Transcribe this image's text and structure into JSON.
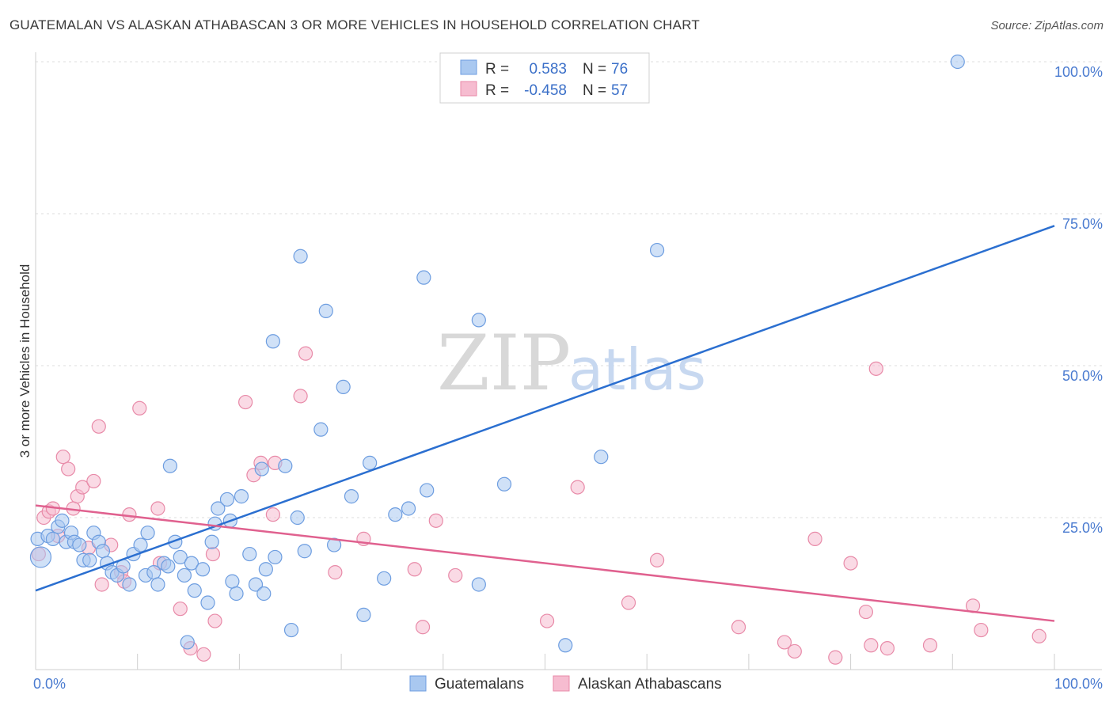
{
  "title": "GUATEMALAN VS ALASKAN ATHABASCAN 3 OR MORE VEHICLES IN HOUSEHOLD CORRELATION CHART",
  "source": "Source: ZipAtlas.com",
  "watermark": {
    "zip": "ZIP",
    "atlas": "atlas"
  },
  "colors": {
    "blue_fill": "#a9c8f0",
    "blue_stroke": "#6d9de0",
    "blue_line": "#2b6fd0",
    "pink_fill": "#f6bcd0",
    "pink_stroke": "#e88aa8",
    "pink_line": "#e0618f",
    "grid": "#dddddd",
    "tick_text": "#4a7bd0"
  },
  "legend": {
    "rows": [
      {
        "r_label": "R =",
        "r_value": "0.583",
        "n_label": "N =",
        "n_value": "76",
        "series": "Guatemalans"
      },
      {
        "r_label": "R =",
        "r_value": "-0.458",
        "n_label": "N =",
        "n_value": "57",
        "series": "Alaskan Athabascans"
      }
    ]
  },
  "chart_data": {
    "type": "scatter",
    "xlabel": "",
    "ylabel": "3 or more Vehicles in Household",
    "xlim": [
      0,
      100
    ],
    "ylim": [
      0,
      100
    ],
    "x_tick_labels": [
      "0.0%",
      "100.0%"
    ],
    "y_tick_labels": [
      {
        "value": 25,
        "label": "25.0%"
      },
      {
        "value": 50,
        "label": "50.0%"
      },
      {
        "value": 75,
        "label": "75.0%"
      },
      {
        "value": 100,
        "label": "100.0%"
      }
    ],
    "series": [
      {
        "name": "Guatemalans",
        "r": 0.583,
        "n": 76,
        "trend": {
          "x": [
            0,
            100
          ],
          "y": [
            13.0,
            73.0
          ]
        },
        "points": [
          [
            0.2,
            21.5
          ],
          [
            0.5,
            18.5
          ],
          [
            1.2,
            22
          ],
          [
            1.7,
            21.5
          ],
          [
            2.2,
            23.5
          ],
          [
            2.6,
            24.5
          ],
          [
            3.0,
            21
          ],
          [
            3.5,
            22.5
          ],
          [
            3.8,
            21
          ],
          [
            4.3,
            20.5
          ],
          [
            4.7,
            18
          ],
          [
            5.3,
            18
          ],
          [
            5.7,
            22.5
          ],
          [
            6.2,
            21
          ],
          [
            6.6,
            19.5
          ],
          [
            7.0,
            17.5
          ],
          [
            7.5,
            16
          ],
          [
            8.0,
            15.5
          ],
          [
            8.6,
            17
          ],
          [
            9.2,
            14
          ],
          [
            9.6,
            19
          ],
          [
            10.3,
            20.5
          ],
          [
            10.8,
            15.5
          ],
          [
            11.0,
            22.5
          ],
          [
            11.6,
            16
          ],
          [
            12.0,
            14
          ],
          [
            12.6,
            17.5
          ],
          [
            13.0,
            17
          ],
          [
            13.2,
            33.5
          ],
          [
            13.7,
            21
          ],
          [
            14.2,
            18.5
          ],
          [
            14.6,
            15.5
          ],
          [
            14.9,
            4.5
          ],
          [
            15.3,
            17.5
          ],
          [
            15.6,
            13
          ],
          [
            16.4,
            16.5
          ],
          [
            16.9,
            11
          ],
          [
            17.3,
            21
          ],
          [
            17.6,
            24
          ],
          [
            17.9,
            26.5
          ],
          [
            18.8,
            28
          ],
          [
            19.1,
            24.5
          ],
          [
            19.3,
            14.5
          ],
          [
            19.7,
            12.5
          ],
          [
            20.2,
            28.5
          ],
          [
            21.0,
            19
          ],
          [
            21.6,
            14
          ],
          [
            22.2,
            33
          ],
          [
            22.4,
            12.5
          ],
          [
            22.6,
            16.5
          ],
          [
            23.3,
            54
          ],
          [
            23.5,
            18.5
          ],
          [
            24.5,
            33.5
          ],
          [
            25.1,
            6.5
          ],
          [
            25.7,
            25
          ],
          [
            26.0,
            68
          ],
          [
            26.4,
            19.5
          ],
          [
            28.0,
            39.5
          ],
          [
            28.5,
            59
          ],
          [
            29.3,
            20.5
          ],
          [
            30.2,
            46.5
          ],
          [
            31.0,
            28.5
          ],
          [
            32.2,
            9
          ],
          [
            32.8,
            34
          ],
          [
            34.2,
            15
          ],
          [
            35.3,
            25.5
          ],
          [
            36.6,
            26.5
          ],
          [
            38.4,
            29.5
          ],
          [
            38.1,
            64.5
          ],
          [
            43.5,
            57.5
          ],
          [
            43.5,
            14
          ],
          [
            46.0,
            30.5
          ],
          [
            52.0,
            4
          ],
          [
            55.5,
            35
          ],
          [
            61.0,
            69
          ],
          [
            90.5,
            100
          ]
        ]
      },
      {
        "name": "Alaskan Athabascans",
        "r": -0.458,
        "n": 57,
        "trend": {
          "x": [
            0,
            100
          ],
          "y": [
            27.0,
            8.0
          ]
        },
        "points": [
          [
            0.3,
            19
          ],
          [
            0.8,
            25
          ],
          [
            1.3,
            26
          ],
          [
            1.7,
            26.5
          ],
          [
            2.2,
            22
          ],
          [
            2.7,
            35
          ],
          [
            3.2,
            33
          ],
          [
            3.7,
            26.5
          ],
          [
            4.1,
            28.5
          ],
          [
            4.6,
            30
          ],
          [
            5.2,
            20
          ],
          [
            5.7,
            31
          ],
          [
            6.2,
            40
          ],
          [
            6.5,
            14
          ],
          [
            7.4,
            20.5
          ],
          [
            8.4,
            16
          ],
          [
            8.7,
            14.5
          ],
          [
            9.2,
            25.5
          ],
          [
            10.2,
            43
          ],
          [
            12.0,
            26.5
          ],
          [
            12.2,
            17.5
          ],
          [
            14.2,
            10
          ],
          [
            15.2,
            3.5
          ],
          [
            16.5,
            2.5
          ],
          [
            17.4,
            19
          ],
          [
            17.6,
            8
          ],
          [
            20.6,
            44
          ],
          [
            21.4,
            32
          ],
          [
            22.1,
            34
          ],
          [
            23.5,
            34
          ],
          [
            23.3,
            25.5
          ],
          [
            26.0,
            45
          ],
          [
            26.5,
            52
          ],
          [
            29.4,
            16
          ],
          [
            32.2,
            21.5
          ],
          [
            37.2,
            16.5
          ],
          [
            38.0,
            7
          ],
          [
            39.3,
            24.5
          ],
          [
            41.2,
            15.5
          ],
          [
            50.2,
            8
          ],
          [
            53.2,
            30
          ],
          [
            58.2,
            11
          ],
          [
            61.0,
            18
          ],
          [
            69.0,
            7
          ],
          [
            73.5,
            4.5
          ],
          [
            74.5,
            3
          ],
          [
            76.5,
            21.5
          ],
          [
            78.5,
            2
          ],
          [
            80.0,
            17.5
          ],
          [
            81.5,
            9.5
          ],
          [
            82.0,
            4
          ],
          [
            82.5,
            49.5
          ],
          [
            83.6,
            3.5
          ],
          [
            87.8,
            4
          ],
          [
            92.0,
            10.5
          ],
          [
            92.8,
            6.5
          ],
          [
            98.5,
            5.5
          ]
        ]
      }
    ],
    "bottom_legend": [
      "Guatemalans",
      "Alaskan Athabascans"
    ]
  }
}
